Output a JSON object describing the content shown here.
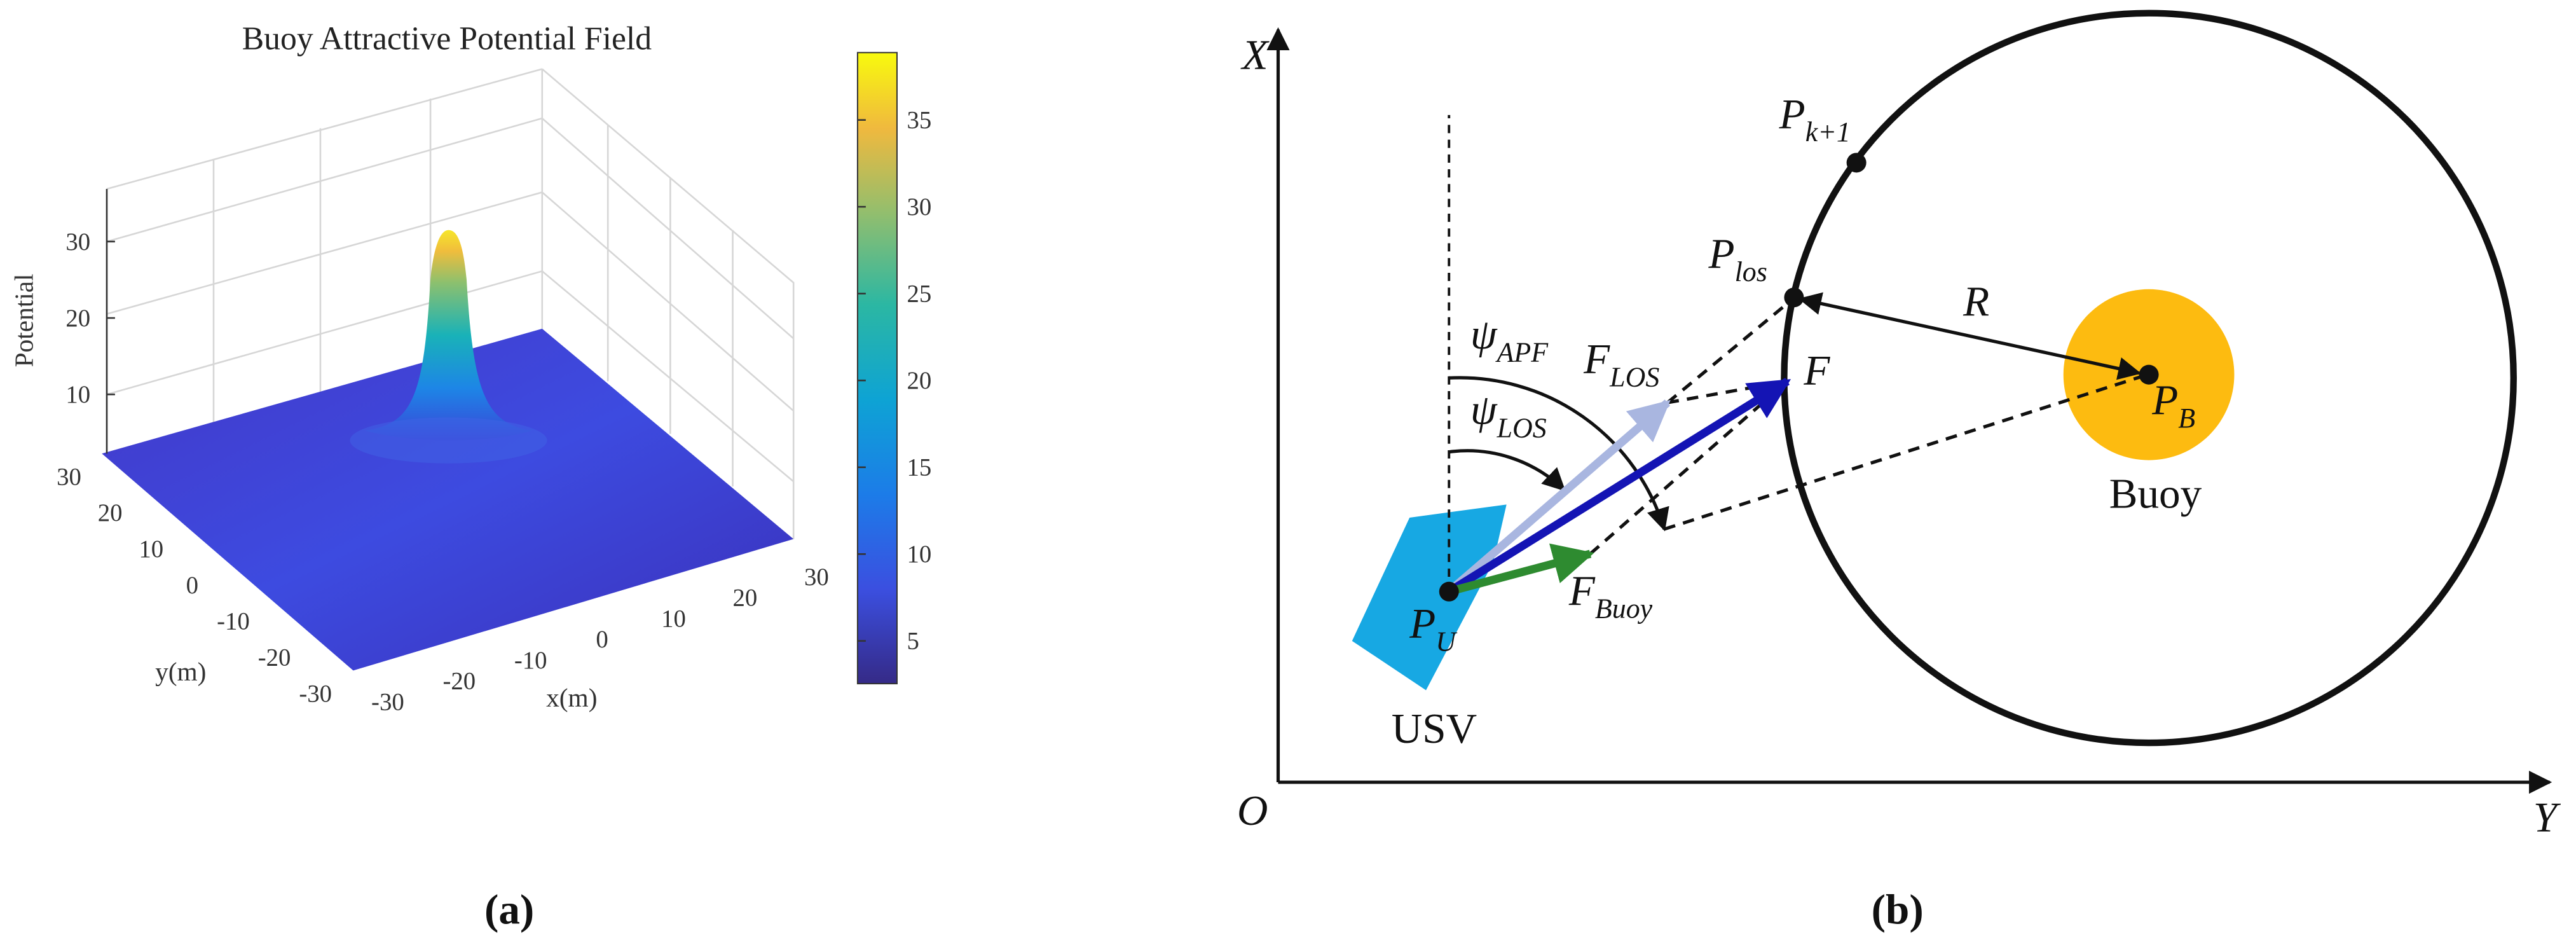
{
  "panel_a": {
    "title": "Buoy Attractive Potential Field",
    "colorbar_ticks": [
      35,
      30,
      25,
      20,
      15,
      10,
      5
    ],
    "z_label": "Potential",
    "zticks": [
      30,
      20,
      10
    ],
    "x_label": "x(m)",
    "xticks": [
      -30,
      -20,
      -10,
      0,
      10,
      20,
      30
    ],
    "y_label": "y(m)",
    "yticks": [
      30,
      20,
      10,
      0,
      -10,
      -20,
      -30
    ],
    "caption": "(a)"
  },
  "panel_b": {
    "axis_x": "X",
    "axis_y": "Y",
    "origin": "O",
    "usv": "USV",
    "buoy": "Buoy",
    "radius": "R",
    "force": "F",
    "p_next": {
      "base": "P",
      "sub": "k+1"
    },
    "p_los": {
      "base": "P",
      "sub": "los"
    },
    "p_b": {
      "base": "P",
      "sub": "B"
    },
    "p_u": {
      "base": "P",
      "sub": "U"
    },
    "f_los": {
      "base": "F",
      "sub": "LOS"
    },
    "f_buoy": {
      "base": "F",
      "sub": "Buoy"
    },
    "psi_apf": {
      "base": "ψ",
      "sub": "APF"
    },
    "psi_los": {
      "base": "ψ",
      "sub": "LOS"
    },
    "caption": "(b)"
  }
}
